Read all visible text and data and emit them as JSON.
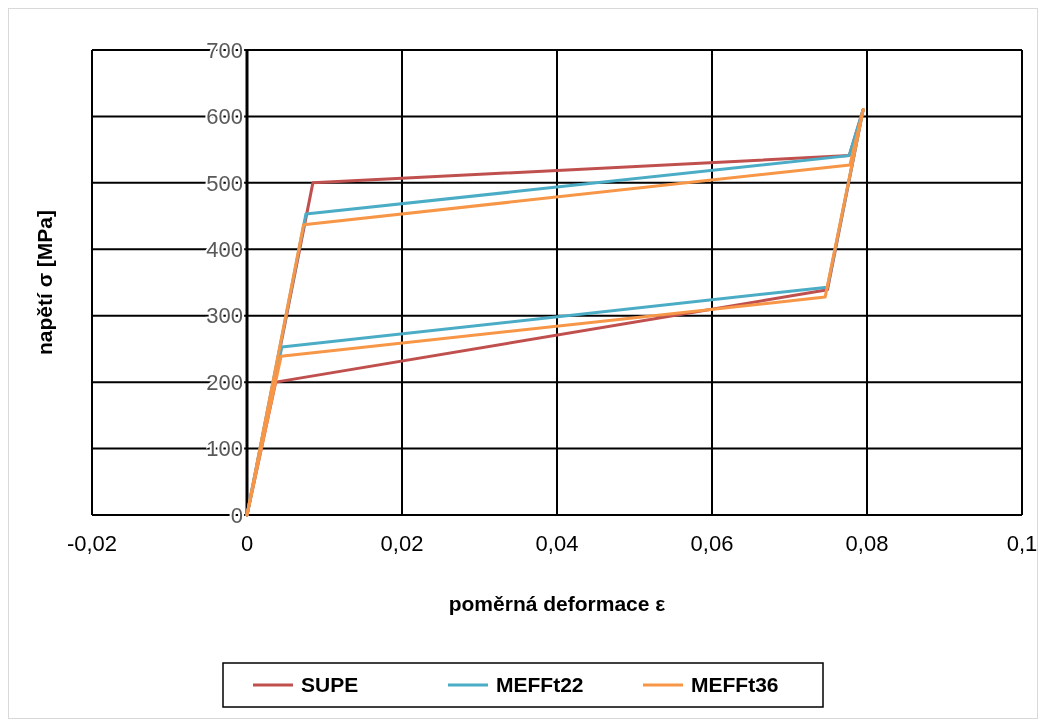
{
  "chart_data": {
    "type": "line",
    "xlabel": "poměrná deformace ε",
    "ylabel": "napětí σ [MPa]",
    "xlim": [
      -0.02,
      0.1
    ],
    "xticks": [
      {
        "value": -0.02,
        "label": "-0,02"
      },
      0,
      {
        "value": 0.02,
        "label": "0,02"
      },
      {
        "value": 0.04,
        "label": "0,04"
      },
      {
        "value": 0.06,
        "label": "0,06"
      },
      {
        "value": 0.08,
        "label": "0,08"
      },
      {
        "value": 0.1,
        "label": "0,1"
      }
    ],
    "ylim": [
      0,
      700
    ],
    "yticks": [
      0,
      100,
      200,
      300,
      400,
      500,
      600,
      700
    ],
    "grid": true,
    "legend": "bottom",
    "marker": "none",
    "line_style": "solid",
    "series": [
      {
        "name": "SUPE",
        "color": "#c0504d",
        "x": [
          0,
          0.0085,
          0.0777,
          0.0795
        ],
        "values": [
          0,
          500,
          541,
          610
        ]
      },
      {
        "color": "#c0504d",
        "x": [
          0,
          0.0037,
          0.0749,
          0.0795
        ],
        "values": [
          0,
          200,
          339,
          610
        ]
      },
      {
        "name": "MEFFt22",
        "color": "#4bacc6",
        "x": [
          0,
          0.0076,
          0.0777,
          0.0795
        ],
        "values": [
          0,
          453,
          541,
          610
        ]
      },
      {
        "color": "#4bacc6",
        "x": [
          0,
          0.0045,
          0.0749,
          0.0795
        ],
        "values": [
          0,
          253,
          343,
          610
        ]
      },
      {
        "name": "MEFFt36",
        "color": "#f79646",
        "x": [
          0,
          0.0073,
          0.0778,
          0.0795
        ],
        "values": [
          0,
          437,
          527,
          610
        ]
      },
      {
        "color": "#f79646",
        "x": [
          0,
          0.0044,
          0.0746,
          0.0795
        ],
        "values": [
          0,
          239,
          328,
          610
        ]
      }
    ]
  }
}
